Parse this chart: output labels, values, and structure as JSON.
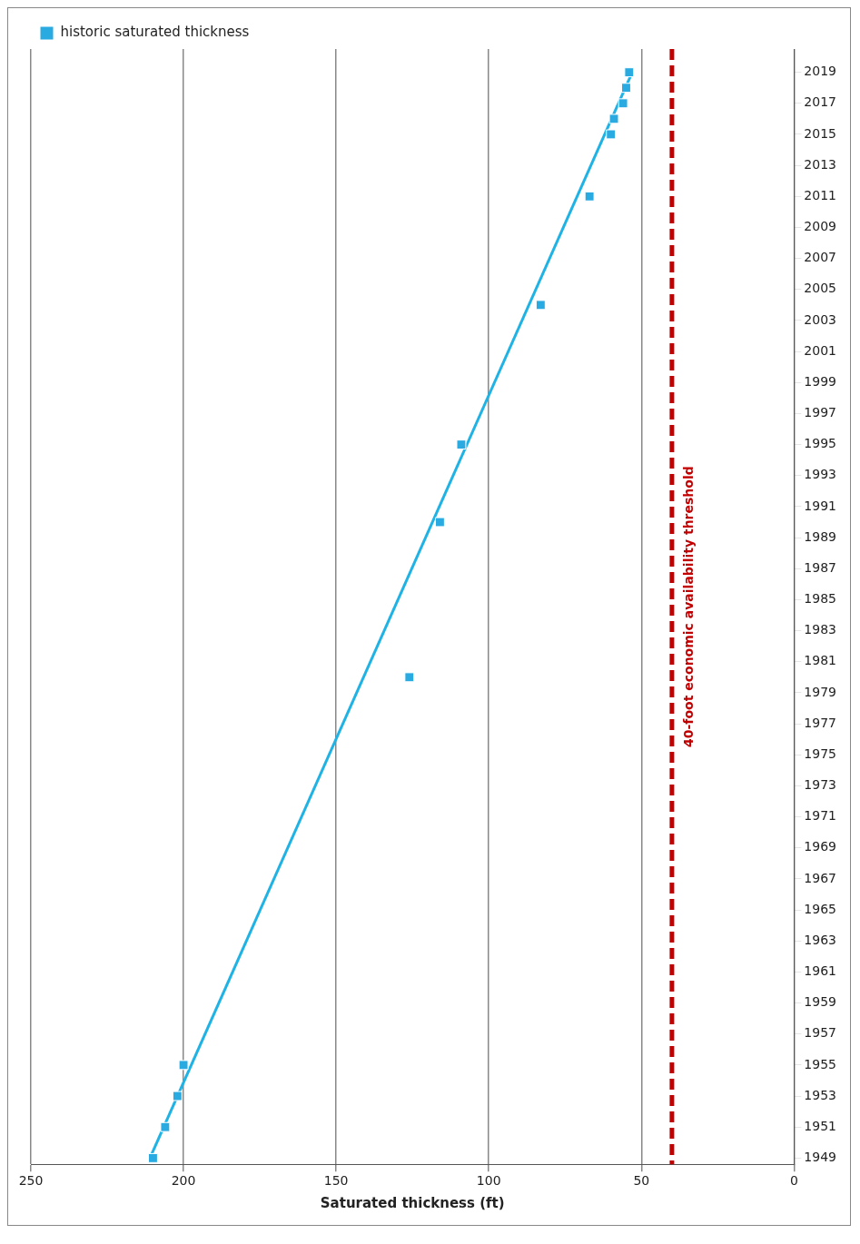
{
  "chart_data": {
    "type": "scatter",
    "xlabel": "Saturated thickness (ft)",
    "xlim": [
      250,
      0
    ],
    "xticks": [
      250,
      200,
      150,
      100,
      50,
      0
    ],
    "ylim": [
      1948.6,
      2020.5
    ],
    "yticks": [
      1949,
      1951,
      1953,
      1955,
      1957,
      1959,
      1961,
      1963,
      1965,
      1967,
      1969,
      1971,
      1973,
      1975,
      1977,
      1979,
      1981,
      1983,
      1985,
      1987,
      1989,
      1991,
      1993,
      1995,
      1997,
      1999,
      2001,
      2003,
      2005,
      2007,
      2009,
      2011,
      2013,
      2015,
      2017,
      2019
    ],
    "grid": "x",
    "legend": "top left",
    "series": [
      {
        "type": "scatter",
        "name": "historic saturated thickness",
        "color": "#29abe2",
        "marker": "square",
        "x": [
          210,
          206,
          202,
          200,
          126,
          116,
          109,
          83,
          67,
          60,
          59,
          56,
          55,
          54
        ],
        "values": [
          1949,
          1951,
          1953,
          1955,
          1980,
          1990,
          1995,
          2004,
          2011,
          2015,
          2016,
          2017,
          2018,
          2019
        ]
      },
      {
        "type": "line",
        "color": "#1fb3e5",
        "marker": "none",
        "x": [
          211,
          53
        ],
        "values": [
          1949,
          2019
        ]
      }
    ],
    "ref_lines": [
      {
        "axis": "x",
        "value": 40,
        "label": "40-foot economic availability threshold",
        "color": "#c00000",
        "line_style": "dashed"
      }
    ]
  }
}
